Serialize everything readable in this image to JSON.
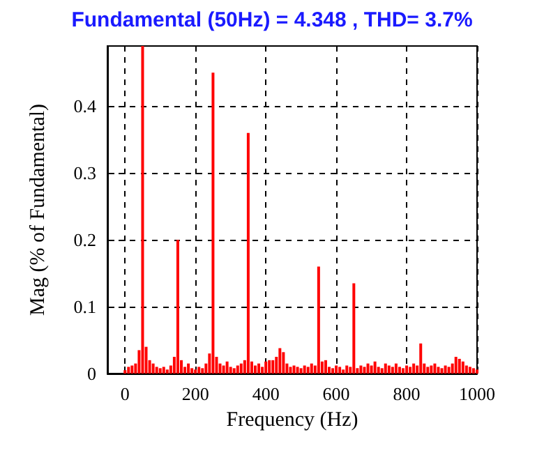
{
  "chart_data": {
    "type": "bar",
    "title": "Fundamental (50Hz) = 4.348 , THD= 3.7%",
    "xlabel": "Frequency (Hz)",
    "ylabel": "Mag (% of Fundamental)",
    "x": [
      0,
      10,
      20,
      30,
      40,
      50,
      60,
      70,
      80,
      90,
      100,
      110,
      120,
      130,
      140,
      150,
      160,
      170,
      180,
      190,
      200,
      210,
      220,
      230,
      240,
      250,
      260,
      270,
      280,
      290,
      300,
      310,
      320,
      330,
      340,
      350,
      360,
      370,
      380,
      390,
      400,
      410,
      420,
      430,
      440,
      450,
      460,
      470,
      480,
      490,
      500,
      510,
      520,
      530,
      540,
      550,
      560,
      570,
      580,
      590,
      600,
      610,
      620,
      630,
      640,
      650,
      660,
      670,
      680,
      690,
      700,
      710,
      720,
      730,
      740,
      750,
      760,
      770,
      780,
      790,
      800,
      810,
      820,
      830,
      840,
      850,
      860,
      870,
      880,
      890,
      900,
      910,
      920,
      930,
      940,
      950,
      960,
      970,
      980,
      990,
      1000
    ],
    "values": [
      0.005,
      0.01,
      0.012,
      0.015,
      0.035,
      0.49,
      0.04,
      0.02,
      0.015,
      0.01,
      0.008,
      0.01,
      0.006,
      0.012,
      0.025,
      0.2,
      0.02,
      0.01,
      0.015,
      0.008,
      0.006,
      0.01,
      0.008,
      0.015,
      0.03,
      0.45,
      0.025,
      0.015,
      0.012,
      0.018,
      0.01,
      0.008,
      0.012,
      0.015,
      0.02,
      0.36,
      0.018,
      0.012,
      0.015,
      0.01,
      0.018,
      0.02,
      0.02,
      0.025,
      0.038,
      0.032,
      0.015,
      0.01,
      0.012,
      0.01,
      0.008,
      0.012,
      0.01,
      0.015,
      0.012,
      0.16,
      0.018,
      0.02,
      0.01,
      0.008,
      0.012,
      0.01,
      0.006,
      0.012,
      0.01,
      0.135,
      0.008,
      0.012,
      0.01,
      0.015,
      0.012,
      0.018,
      0.01,
      0.008,
      0.015,
      0.012,
      0.01,
      0.015,
      0.01,
      0.008,
      0.012,
      0.01,
      0.015,
      0.012,
      0.045,
      0.015,
      0.01,
      0.012,
      0.015,
      0.01,
      0.008,
      0.012,
      0.01,
      0.015,
      0.025,
      0.022,
      0.018,
      0.012,
      0.01,
      0.008,
      0.006
    ],
    "color": "#ff0000",
    "xlim": [
      -50,
      1000
    ],
    "xticks": [
      0,
      200,
      400,
      600,
      800,
      1000
    ],
    "ylim": [
      0,
      0.49
    ],
    "yticks": [
      0,
      0.1,
      0.2,
      0.3,
      0.4
    ],
    "grid": true
  }
}
